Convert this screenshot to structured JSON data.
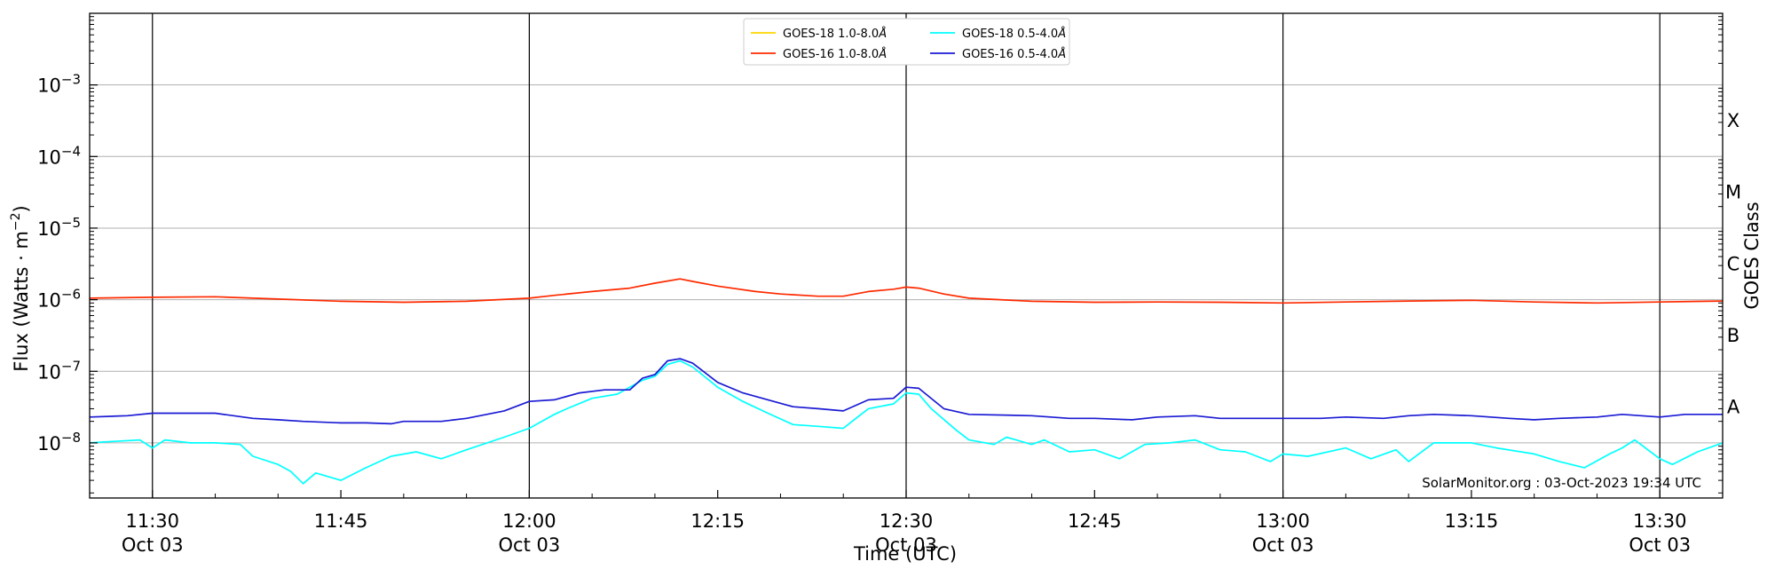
{
  "chart_data": {
    "type": "line",
    "xlabel": "Time (UTC)",
    "ylabel_text": "Flux (Watts · m",
    "ylabel_sup": "−2",
    "ylabel_close": ")",
    "right_label": "GOES Class",
    "credit": "SolarMonitor.org : 03-Oct-2023 19:34 UTC",
    "yscale": "log",
    "ylim": [
      1.7e-09,
      0.01
    ],
    "xlim": [
      "11:25",
      "13:35"
    ],
    "y_ticks": [
      {
        "value": 1e-08,
        "base": "10",
        "exp": "−8"
      },
      {
        "value": 1e-07,
        "base": "10",
        "exp": "−7"
      },
      {
        "value": 1e-06,
        "base": "10",
        "exp": "−6"
      },
      {
        "value": 1e-05,
        "base": "10",
        "exp": "−5"
      },
      {
        "value": 0.0001,
        "base": "10",
        "exp": "−4"
      },
      {
        "value": 0.001,
        "base": "10",
        "exp": "−3"
      }
    ],
    "x_ticks": [
      {
        "time": "11:30",
        "label": "11:30",
        "date": "Oct 03"
      },
      {
        "time": "11:45",
        "label": "11:45",
        "date": ""
      },
      {
        "time": "12:00",
        "label": "12:00",
        "date": "Oct 03"
      },
      {
        "time": "12:15",
        "label": "12:15",
        "date": ""
      },
      {
        "time": "12:30",
        "label": "12:30",
        "date": "Oct 03"
      },
      {
        "time": "12:45",
        "label": "12:45",
        "date": ""
      },
      {
        "time": "13:00",
        "label": "13:00",
        "date": "Oct 03"
      },
      {
        "time": "13:15",
        "label": "13:15",
        "date": ""
      },
      {
        "time": "13:30",
        "label": "13:30",
        "date": "Oct 03"
      }
    ],
    "vlines": [
      "11:30",
      "12:00",
      "12:30",
      "13:00",
      "13:30"
    ],
    "goes_classes": [
      {
        "label": "A",
        "value": 1e-08
      },
      {
        "label": "B",
        "value": 1e-07
      },
      {
        "label": "C",
        "value": 1e-06
      },
      {
        "label": "M",
        "value": 1e-05
      },
      {
        "label": "X",
        "value": 0.0001
      }
    ],
    "grid": "horizontal",
    "legend_position": "top-center",
    "series": [
      {
        "name": "GOES-18 1.0-8.0",
        "unit": "Å",
        "color": "#ffd700",
        "points": []
      },
      {
        "name": "GOES-16 1.0-8.0",
        "unit": "Å",
        "color": "#ff2a00",
        "points": [
          [
            "11:25",
            1.05e-06
          ],
          [
            "11:30",
            1.08e-06
          ],
          [
            "11:35",
            1.1e-06
          ],
          [
            "11:40",
            1.02e-06
          ],
          [
            "11:45",
            9.5e-07
          ],
          [
            "11:50",
            9.2e-07
          ],
          [
            "11:55",
            9.5e-07
          ],
          [
            "12:00",
            1.05e-06
          ],
          [
            "12:02",
            1.15e-06
          ],
          [
            "12:05",
            1.3e-06
          ],
          [
            "12:08",
            1.45e-06
          ],
          [
            "12:10",
            1.7e-06
          ],
          [
            "12:12",
            1.95e-06
          ],
          [
            "12:13",
            1.8e-06
          ],
          [
            "12:15",
            1.55e-06
          ],
          [
            "12:18",
            1.3e-06
          ],
          [
            "12:20",
            1.2e-06
          ],
          [
            "12:23",
            1.12e-06
          ],
          [
            "12:25",
            1.12e-06
          ],
          [
            "12:27",
            1.3e-06
          ],
          [
            "12:29",
            1.4e-06
          ],
          [
            "12:30",
            1.5e-06
          ],
          [
            "12:31",
            1.45e-06
          ],
          [
            "12:33",
            1.2e-06
          ],
          [
            "12:35",
            1.05e-06
          ],
          [
            "12:40",
            9.5e-07
          ],
          [
            "12:45",
            9.2e-07
          ],
          [
            "12:50",
            9.3e-07
          ],
          [
            "12:55",
            9.2e-07
          ],
          [
            "13:00",
            9e-07
          ],
          [
            "13:05",
            9.3e-07
          ],
          [
            "13:10",
            9.6e-07
          ],
          [
            "13:15",
            9.8e-07
          ],
          [
            "13:20",
            9.3e-07
          ],
          [
            "13:25",
            9e-07
          ],
          [
            "13:30",
            9.3e-07
          ],
          [
            "13:35",
            9.6e-07
          ]
        ]
      },
      {
        "name": "GOES-18 0.5-4.0",
        "unit": "Å",
        "color": "#00ffff",
        "points": [
          [
            "11:25",
            1e-08
          ],
          [
            "11:27",
            1.05e-08
          ],
          [
            "11:29",
            1.1e-08
          ],
          [
            "11:30",
            8.5e-09
          ],
          [
            "11:31",
            1.1e-08
          ],
          [
            "11:33",
            1e-08
          ],
          [
            "11:35",
            1e-08
          ],
          [
            "11:37",
            9.5e-09
          ],
          [
            "11:38",
            6.5e-09
          ],
          [
            "11:40",
            5e-09
          ],
          [
            "11:41",
            4e-09
          ],
          [
            "11:42",
            2.7e-09
          ],
          [
            "11:43",
            3.8e-09
          ],
          [
            "11:45",
            3e-09
          ],
          [
            "11:47",
            4.5e-09
          ],
          [
            "11:49",
            6.5e-09
          ],
          [
            "11:51",
            7.5e-09
          ],
          [
            "11:53",
            6e-09
          ],
          [
            "11:55",
            8e-09
          ],
          [
            "11:58",
            1.2e-08
          ],
          [
            "12:00",
            1.6e-08
          ],
          [
            "12:02",
            2.5e-08
          ],
          [
            "12:03",
            3e-08
          ],
          [
            "12:05",
            4.2e-08
          ],
          [
            "12:07",
            4.8e-08
          ],
          [
            "12:09",
            7.5e-08
          ],
          [
            "12:10",
            8.5e-08
          ],
          [
            "12:11",
            1.25e-07
          ],
          [
            "12:12",
            1.4e-07
          ],
          [
            "12:13",
            1.15e-07
          ],
          [
            "12:15",
            6e-08
          ],
          [
            "12:17",
            3.8e-08
          ],
          [
            "12:19",
            2.6e-08
          ],
          [
            "12:21",
            1.8e-08
          ],
          [
            "12:23",
            1.7e-08
          ],
          [
            "12:25",
            1.6e-08
          ],
          [
            "12:26",
            2.2e-08
          ],
          [
            "12:27",
            3e-08
          ],
          [
            "12:29",
            3.5e-08
          ],
          [
            "12:30",
            5e-08
          ],
          [
            "12:31",
            4.8e-08
          ],
          [
            "12:32",
            3e-08
          ],
          [
            "12:34",
            1.5e-08
          ],
          [
            "12:35",
            1.1e-08
          ],
          [
            "12:37",
            9.5e-09
          ],
          [
            "12:38",
            1.2e-08
          ],
          [
            "12:40",
            9.5e-09
          ],
          [
            "12:41",
            1.1e-08
          ],
          [
            "12:43",
            7.5e-09
          ],
          [
            "12:45",
            8e-09
          ],
          [
            "12:47",
            6e-09
          ],
          [
            "12:49",
            9.5e-09
          ],
          [
            "12:51",
            1e-08
          ],
          [
            "12:53",
            1.1e-08
          ],
          [
            "12:55",
            8e-09
          ],
          [
            "12:57",
            7.5e-09
          ],
          [
            "12:59",
            5.5e-09
          ],
          [
            "13:00",
            7e-09
          ],
          [
            "13:02",
            6.5e-09
          ],
          [
            "13:05",
            8.5e-09
          ],
          [
            "13:07",
            6e-09
          ],
          [
            "13:09",
            8e-09
          ],
          [
            "13:10",
            5.5e-09
          ],
          [
            "13:12",
            1e-08
          ],
          [
            "13:15",
            1e-08
          ],
          [
            "13:17",
            8.5e-09
          ],
          [
            "13:20",
            7e-09
          ],
          [
            "13:22",
            5.5e-09
          ],
          [
            "13:24",
            4.5e-09
          ],
          [
            "13:26",
            7e-09
          ],
          [
            "13:27",
            8.5e-09
          ],
          [
            "13:28",
            1.1e-08
          ],
          [
            "13:30",
            6e-09
          ],
          [
            "13:31",
            5e-09
          ],
          [
            "13:33",
            7.5e-09
          ],
          [
            "13:35",
            1e-08
          ]
        ]
      },
      {
        "name": "GOES-16 0.5-4.0",
        "unit": "Å",
        "color": "#1a1ad4",
        "points": [
          [
            "11:25",
            2.3e-08
          ],
          [
            "11:28",
            2.4e-08
          ],
          [
            "11:30",
            2.6e-08
          ],
          [
            "11:33",
            2.6e-08
          ],
          [
            "11:35",
            2.6e-08
          ],
          [
            "11:38",
            2.2e-08
          ],
          [
            "11:40",
            2.1e-08
          ],
          [
            "11:42",
            2e-08
          ],
          [
            "11:45",
            1.9e-08
          ],
          [
            "11:47",
            1.9e-08
          ],
          [
            "11:49",
            1.85e-08
          ],
          [
            "11:50",
            2e-08
          ],
          [
            "11:53",
            2e-08
          ],
          [
            "11:55",
            2.2e-08
          ],
          [
            "11:58",
            2.8e-08
          ],
          [
            "12:00",
            3.8e-08
          ],
          [
            "12:02",
            4e-08
          ],
          [
            "12:04",
            5e-08
          ],
          [
            "12:06",
            5.5e-08
          ],
          [
            "12:08",
            5.5e-08
          ],
          [
            "12:09",
            8e-08
          ],
          [
            "12:10",
            9e-08
          ],
          [
            "12:11",
            1.4e-07
          ],
          [
            "12:12",
            1.5e-07
          ],
          [
            "12:13",
            1.3e-07
          ],
          [
            "12:15",
            7e-08
          ],
          [
            "12:17",
            5e-08
          ],
          [
            "12:19",
            4e-08
          ],
          [
            "12:21",
            3.2e-08
          ],
          [
            "12:23",
            3e-08
          ],
          [
            "12:25",
            2.8e-08
          ],
          [
            "12:27",
            4e-08
          ],
          [
            "12:29",
            4.2e-08
          ],
          [
            "12:30",
            6e-08
          ],
          [
            "12:31",
            5.8e-08
          ],
          [
            "12:33",
            3e-08
          ],
          [
            "12:35",
            2.5e-08
          ],
          [
            "12:40",
            2.4e-08
          ],
          [
            "12:43",
            2.2e-08
          ],
          [
            "12:45",
            2.2e-08
          ],
          [
            "12:48",
            2.1e-08
          ],
          [
            "12:50",
            2.3e-08
          ],
          [
            "12:53",
            2.4e-08
          ],
          [
            "12:55",
            2.2e-08
          ],
          [
            "13:00",
            2.2e-08
          ],
          [
            "13:03",
            2.2e-08
          ],
          [
            "13:05",
            2.3e-08
          ],
          [
            "13:08",
            2.2e-08
          ],
          [
            "13:10",
            2.4e-08
          ],
          [
            "13:12",
            2.5e-08
          ],
          [
            "13:15",
            2.4e-08
          ],
          [
            "13:18",
            2.2e-08
          ],
          [
            "13:20",
            2.1e-08
          ],
          [
            "13:22",
            2.2e-08
          ],
          [
            "13:25",
            2.3e-08
          ],
          [
            "13:27",
            2.5e-08
          ],
          [
            "13:30",
            2.3e-08
          ],
          [
            "13:32",
            2.5e-08
          ],
          [
            "13:35",
            2.5e-08
          ]
        ]
      }
    ]
  }
}
